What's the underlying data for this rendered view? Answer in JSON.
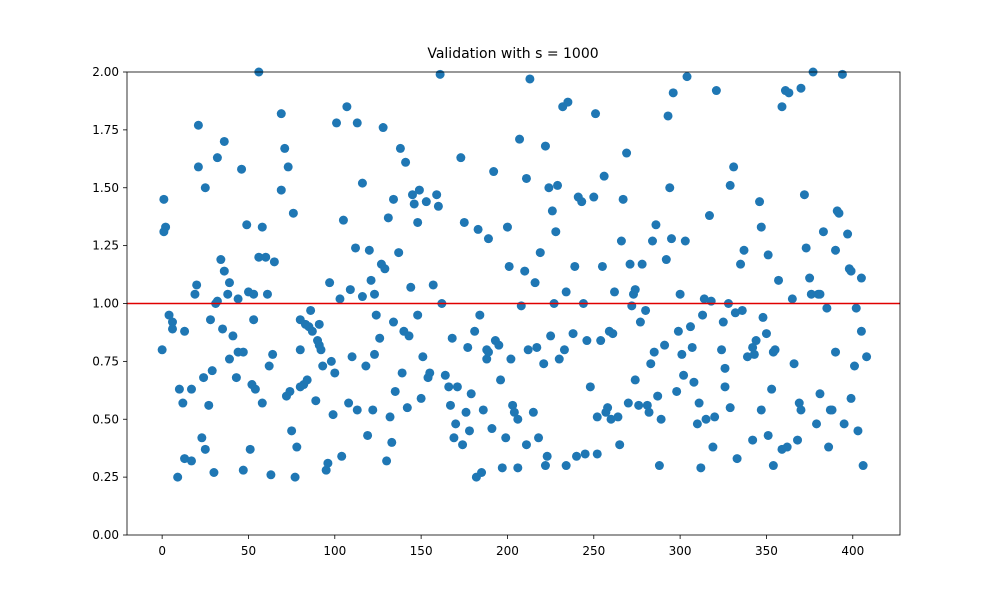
{
  "chart_data": {
    "type": "scatter",
    "title": "Validation with s = 1000",
    "x": [
      0,
      1,
      2,
      1,
      4,
      6,
      6,
      9,
      10,
      12,
      13,
      13,
      17,
      17,
      19,
      20,
      21,
      21,
      23,
      24,
      25,
      25,
      27,
      28,
      29,
      30,
      31,
      32,
      32,
      34,
      35,
      36,
      36,
      38,
      39,
      39,
      41,
      43,
      44,
      44,
      46,
      47,
      47,
      49,
      50,
      51,
      52,
      53,
      53,
      54,
      56,
      56,
      58,
      58,
      60,
      61,
      62,
      63,
      64,
      65,
      69,
      69,
      71,
      72,
      73,
      74,
      75,
      76,
      77,
      78,
      80,
      80,
      80,
      82,
      83,
      84,
      85,
      86,
      87,
      89,
      90,
      91,
      91,
      92,
      93,
      95,
      96,
      97,
      98,
      99,
      100,
      101,
      103,
      104,
      105,
      107,
      108,
      109,
      110,
      112,
      113,
      113,
      116,
      116,
      118,
      119,
      120,
      121,
      122,
      123,
      123,
      124,
      126,
      127,
      128,
      129,
      130,
      131,
      132,
      133,
      134,
      134,
      135,
      137,
      138,
      139,
      140,
      141,
      142,
      143,
      144,
      145,
      146,
      148,
      148,
      149,
      150,
      151,
      153,
      154,
      155,
      157,
      159,
      160,
      161,
      162,
      164,
      166,
      167,
      168,
      169,
      170,
      171,
      173,
      174,
      175,
      176,
      177,
      178,
      179,
      181,
      182,
      183,
      184,
      185,
      186,
      188,
      188,
      189,
      189,
      191,
      192,
      193,
      195,
      196,
      197,
      199,
      200,
      201,
      202,
      203,
      204,
      206,
      206,
      207,
      208,
      210,
      211,
      211,
      212,
      213,
      215,
      216,
      217,
      218,
      219,
      221,
      222,
      222,
      223,
      224,
      225,
      226,
      227,
      228,
      229,
      230,
      232,
      233,
      234,
      234,
      235,
      238,
      239,
      240,
      241,
      243,
      244,
      245,
      246,
      248,
      250,
      251,
      252,
      252,
      254,
      255,
      256,
      257,
      258,
      259,
      260,
      261,
      262,
      264,
      265,
      266,
      267,
      269,
      270,
      271,
      272,
      273,
      274,
      274,
      276,
      277,
      278,
      280,
      281,
      282,
      283,
      284,
      285,
      286,
      287,
      288,
      289,
      291,
      292,
      293,
      294,
      295,
      296,
      298,
      299,
      300,
      301,
      302,
      303,
      304,
      306,
      307,
      308,
      310,
      311,
      312,
      313,
      314,
      315,
      317,
      318,
      319,
      320,
      321,
      324,
      325,
      326,
      326,
      328,
      329,
      329,
      331,
      332,
      333,
      335,
      336,
      337,
      339,
      342,
      342,
      343,
      344,
      346,
      347,
      347,
      348,
      350,
      351,
      351,
      353,
      354,
      354,
      355,
      357,
      359,
      359,
      361,
      362,
      363,
      365,
      366,
      368,
      369,
      370,
      370,
      372,
      373,
      375,
      376,
      377,
      379,
      380,
      381,
      381,
      383,
      385,
      386,
      387,
      388,
      390,
      390,
      391,
      392,
      394,
      395,
      397,
      398,
      399,
      399,
      401,
      402,
      403,
      405,
      405,
      406,
      408
    ],
    "values": [
      0.8,
      1.31,
      1.33,
      1.45,
      0.95,
      0.92,
      0.89,
      0.25,
      0.63,
      0.57,
      0.88,
      0.33,
      0.63,
      0.32,
      1.04,
      1.08,
      1.77,
      1.59,
      0.42,
      0.68,
      1.5,
      0.37,
      0.56,
      0.93,
      0.71,
      0.27,
      1.0,
      1.63,
      1.01,
      1.19,
      0.89,
      1.14,
      1.7,
      1.04,
      1.09,
      0.76,
      0.86,
      0.68,
      0.79,
      1.02,
      1.58,
      0.79,
      0.28,
      1.34,
      1.05,
      0.37,
      0.65,
      0.93,
      1.04,
      0.63,
      2.0,
      1.2,
      0.57,
      1.33,
      1.2,
      1.04,
      0.73,
      0.26,
      0.78,
      1.18,
      1.82,
      1.49,
      1.67,
      0.6,
      1.59,
      0.62,
      0.45,
      1.39,
      0.25,
      0.38,
      0.93,
      0.64,
      0.8,
      0.65,
      0.91,
      0.67,
      0.9,
      0.97,
      0.88,
      0.58,
      0.84,
      0.82,
      0.91,
      0.8,
      0.73,
      0.28,
      0.31,
      1.09,
      0.75,
      0.52,
      0.7,
      1.78,
      1.02,
      0.34,
      1.36,
      1.85,
      0.57,
      1.06,
      0.77,
      1.24,
      1.78,
      0.54,
      1.52,
      1.03,
      0.73,
      0.43,
      1.23,
      1.1,
      0.54,
      1.04,
      0.78,
      0.95,
      0.85,
      1.17,
      1.76,
      1.15,
      0.32,
      1.37,
      0.51,
      0.4,
      1.45,
      0.92,
      0.62,
      1.22,
      1.67,
      0.7,
      0.88,
      1.61,
      0.55,
      0.86,
      1.07,
      1.47,
      1.43,
      0.95,
      1.35,
      1.49,
      0.59,
      0.77,
      1.44,
      0.68,
      0.7,
      1.08,
      1.47,
      1.42,
      1.99,
      1.0,
      0.69,
      0.64,
      0.56,
      0.85,
      0.42,
      0.48,
      0.64,
      1.63,
      0.39,
      1.35,
      0.53,
      0.81,
      0.45,
      0.61,
      0.88,
      0.25,
      1.32,
      0.95,
      0.27,
      0.54,
      0.76,
      0.8,
      1.28,
      0.79,
      0.46,
      1.57,
      0.84,
      0.82,
      0.67,
      0.29,
      0.42,
      1.33,
      1.16,
      0.76,
      0.56,
      0.53,
      0.5,
      0.29,
      1.71,
      0.99,
      1.14,
      0.39,
      1.54,
      0.8,
      1.97,
      0.53,
      1.09,
      0.81,
      0.42,
      1.22,
      0.74,
      0.3,
      1.68,
      0.34,
      1.5,
      0.86,
      1.4,
      1.0,
      1.31,
      1.51,
      0.76,
      1.85,
      0.8,
      1.05,
      0.3,
      1.87,
      0.87,
      1.16,
      0.34,
      1.46,
      1.44,
      1.0,
      0.35,
      0.84,
      0.64,
      1.46,
      1.82,
      0.35,
      0.51,
      0.84,
      1.16,
      1.55,
      0.53,
      0.55,
      0.88,
      0.5,
      0.87,
      1.05,
      0.51,
      0.39,
      1.27,
      1.45,
      1.65,
      0.57,
      1.17,
      0.99,
      1.04,
      1.06,
      0.67,
      0.56,
      0.92,
      1.17,
      0.97,
      0.56,
      0.53,
      0.74,
      1.27,
      0.79,
      1.34,
      0.6,
      0.3,
      0.5,
      0.82,
      1.19,
      1.81,
      1.5,
      1.28,
      1.91,
      0.62,
      0.88,
      1.04,
      0.78,
      0.69,
      1.27,
      1.98,
      0.9,
      0.81,
      0.66,
      0.48,
      0.57,
      0.29,
      0.95,
      1.02,
      0.5,
      1.38,
      1.01,
      0.38,
      0.51,
      1.92,
      0.8,
      0.92,
      0.72,
      0.64,
      1.0,
      0.55,
      1.51,
      1.59,
      0.96,
      0.33,
      1.17,
      0.97,
      1.23,
      0.77,
      0.81,
      0.41,
      0.78,
      0.84,
      1.44,
      0.54,
      1.33,
      0.94,
      0.87,
      0.43,
      1.21,
      0.63,
      0.3,
      0.79,
      0.8,
      1.1,
      0.37,
      1.85,
      1.92,
      0.38,
      1.91,
      1.02,
      0.74,
      0.41,
      0.57,
      0.54,
      1.93,
      1.47,
      1.24,
      1.11,
      1.04,
      2.0,
      0.48,
      1.04,
      1.04,
      0.61,
      1.31,
      0.98,
      0.38,
      0.54,
      0.54,
      1.23,
      0.79,
      1.4,
      1.39,
      1.99,
      0.48,
      1.3,
      1.15,
      1.14,
      0.59,
      0.73,
      0.98,
      0.45,
      1.11,
      0.88,
      0.3,
      0.77
    ],
    "color": "#1f77b4",
    "hline": {
      "value": 1,
      "color": "#e00000"
    },
    "xlim": [
      -20.35,
      427.35
    ],
    "xticks": [
      0,
      50,
      100,
      150,
      200,
      250,
      300,
      350,
      400
    ],
    "ylim": [
      0,
      2
    ],
    "yticks": [
      {
        "value": 0,
        "label": "0.00"
      },
      {
        "value": 0.25,
        "label": "0.25"
      },
      {
        "value": 0.5,
        "label": "0.50"
      },
      {
        "value": 0.75,
        "label": "0.75"
      },
      {
        "value": 1,
        "label": "1.00"
      },
      {
        "value": 1.25,
        "label": "1.25"
      },
      {
        "value": 1.5,
        "label": "1.50"
      },
      {
        "value": 1.75,
        "label": "1.75"
      },
      {
        "value": 2,
        "label": "2.00"
      }
    ]
  }
}
